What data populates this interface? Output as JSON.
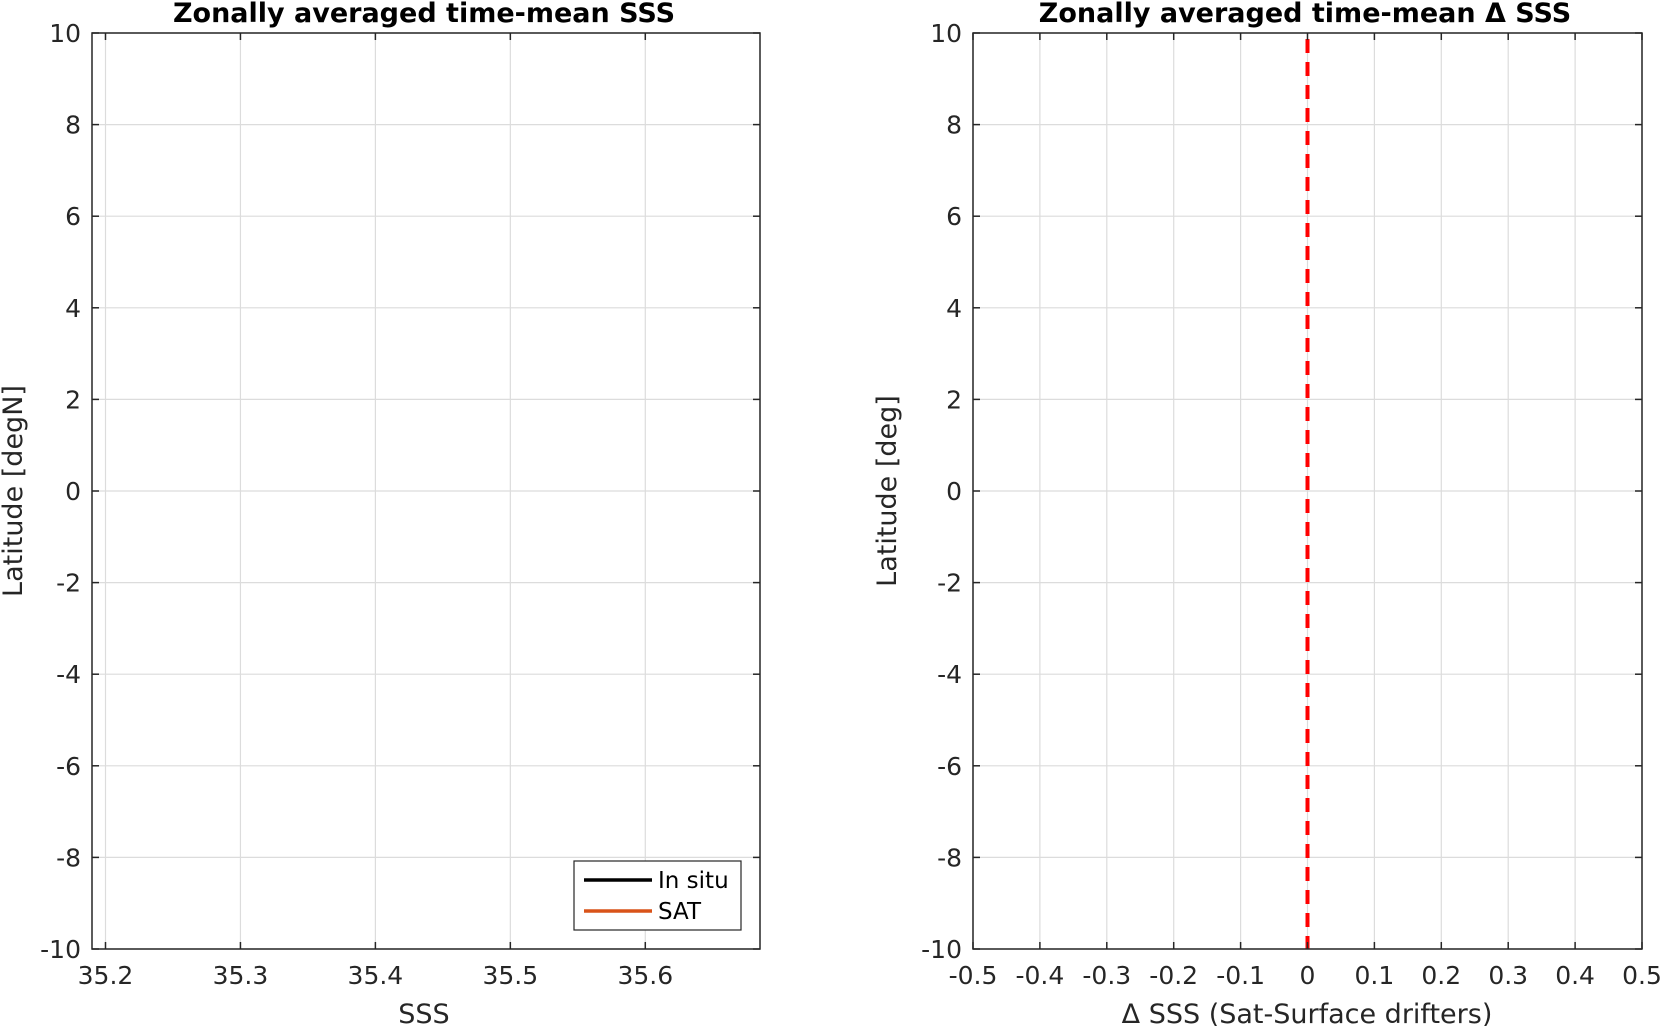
{
  "chart_data": [
    {
      "type": "line",
      "title": "Zonally averaged time-mean SSS",
      "xlabel": "SSS",
      "ylabel": "Latitude [degN]",
      "xlim": [
        35.19,
        35.685
      ],
      "ylim": [
        -10,
        10
      ],
      "x_ticks": [
        35.2,
        35.3,
        35.4,
        35.5,
        35.6
      ],
      "x_tick_labels": [
        "35.2",
        "35.3",
        "35.4",
        "35.5",
        "35.6"
      ],
      "y_ticks": [
        -10,
        -8,
        -6,
        -4,
        -2,
        0,
        2,
        4,
        6,
        8,
        10
      ],
      "y_tick_labels": [
        "-10",
        "-8",
        "-6",
        "-4",
        "-2",
        "0",
        "2",
        "4",
        "6",
        "8",
        "10"
      ],
      "grid": true,
      "legend_position": "bottom-right",
      "series": [
        {
          "name": "In situ",
          "color": "#000000",
          "x": [],
          "y": []
        },
        {
          "name": "SAT",
          "color": "#D95319",
          "x": [],
          "y": []
        }
      ]
    },
    {
      "type": "line",
      "title": "Zonally averaged time-mean Δ SSS",
      "xlabel": "Δ SSS (Sat-Surface drifters)",
      "ylabel": "Latitude [deg]",
      "xlim": [
        -0.5,
        0.5
      ],
      "ylim": [
        -10,
        10
      ],
      "x_ticks": [
        -0.5,
        -0.4,
        -0.3,
        -0.2,
        -0.1,
        0,
        0.1,
        0.2,
        0.3,
        0.4,
        0.5
      ],
      "x_tick_labels": [
        "-0.5",
        "-0.4",
        "-0.3",
        "-0.2",
        "-0.1",
        "0",
        "0.1",
        "0.2",
        "0.3",
        "0.4",
        "0.5"
      ],
      "y_ticks": [
        -10,
        -8,
        -6,
        -4,
        -2,
        0,
        2,
        4,
        6,
        8,
        10
      ],
      "y_tick_labels": [
        "-10",
        "-8",
        "-6",
        "-4",
        "-2",
        "0",
        "2",
        "4",
        "6",
        "8",
        "10"
      ],
      "grid": true,
      "reference_line": {
        "x": 0,
        "color": "#FF0000",
        "style": "dashed"
      }
    }
  ]
}
